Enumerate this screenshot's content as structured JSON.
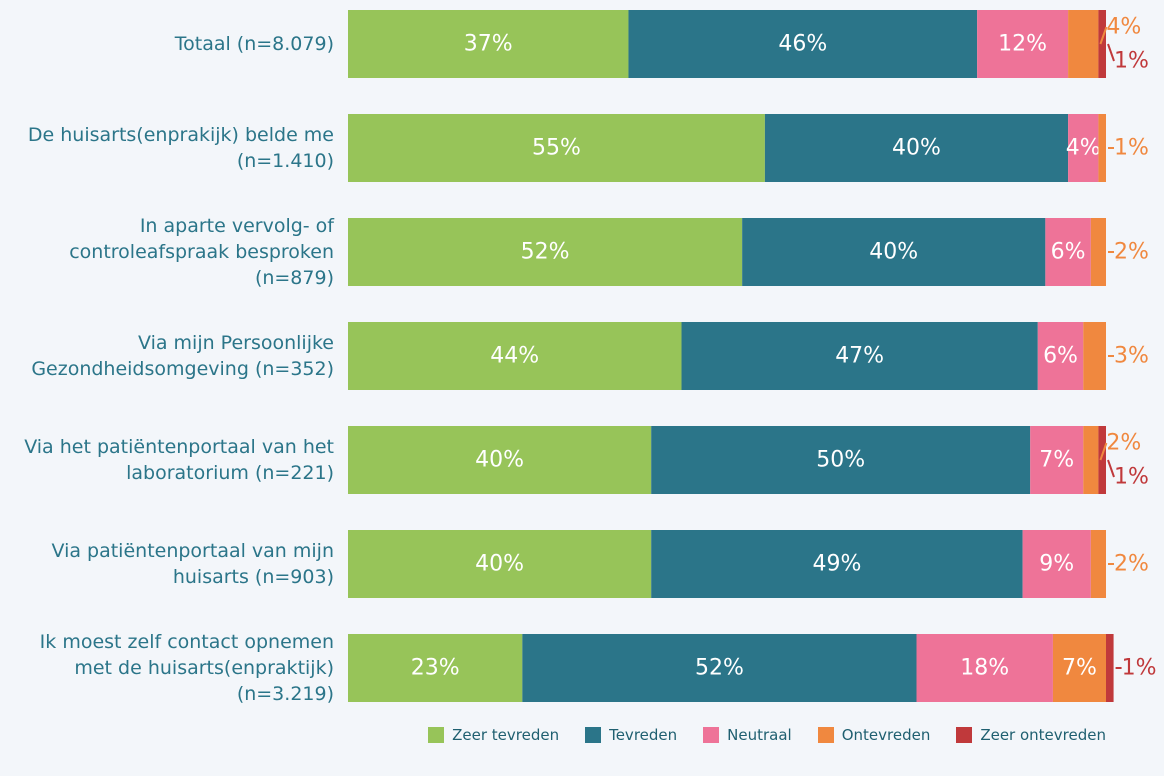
{
  "chart_data": {
    "type": "stacked_barh",
    "categories": [
      "Totaal (n=8.079)",
      "De huisarts(enprakijk) belde me (n=1.410)",
      "In aparte vervolg- of controleafspraak besproken (n=879)",
      "Via mijn Persoonlijke Gezondheidsomgeving (n=352)",
      "Via het patiëntenportaal van het laboratorium (n=221)",
      "Via patiëntenportaal van mijn huisarts (n=903)",
      "Ik moest zelf contact opnemen met de huisarts(enpraktijk) (n=3.219)"
    ],
    "series": [
      {
        "name": "Zeer tevreden",
        "color": "#97c459",
        "values": [
          37,
          55,
          52,
          44,
          40,
          40,
          23
        ],
        "value_labels": [
          "37%",
          "55%",
          "52%",
          "44%",
          "40%",
          "40%",
          "23%"
        ]
      },
      {
        "name": "Tevreden",
        "color": "#2b7589",
        "values": [
          46,
          40,
          40,
          47,
          50,
          49,
          52
        ],
        "value_labels": [
          "46%",
          "40%",
          "40%",
          "47%",
          "50%",
          "49%",
          "52%"
        ]
      },
      {
        "name": "Neutraal",
        "color": "#ee7398",
        "values": [
          12,
          4,
          6,
          6,
          7,
          9,
          18
        ],
        "value_labels": [
          "12%",
          "4%",
          "6%",
          "6%",
          "7%",
          "9%",
          "18%"
        ]
      },
      {
        "name": "Ontevreden",
        "color": "#f0883f",
        "values": [
          4,
          1,
          2,
          3,
          2,
          2,
          7
        ],
        "value_labels": [
          "4%",
          "1%",
          "2%",
          "3%",
          "2%",
          "2%",
          "7%"
        ]
      },
      {
        "name": "Zeer ontevreden",
        "color": "#c0393b",
        "values": [
          1,
          0,
          0,
          0,
          1,
          0,
          1
        ],
        "value_labels": [
          "1%",
          null,
          null,
          null,
          "1%",
          null,
          "1%"
        ]
      }
    ],
    "xlim": [
      0,
      100
    ]
  }
}
